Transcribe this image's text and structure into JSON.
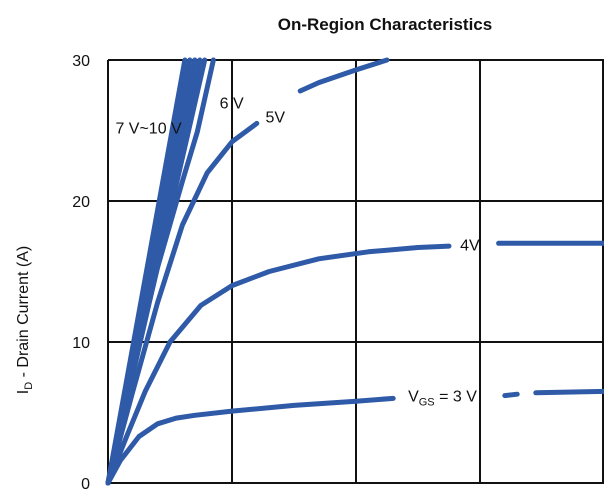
{
  "chart_data": {
    "type": "line",
    "title": "On-Region Characteristics",
    "ylabel_main": "I",
    "ylabel_sub": "D",
    "ylabel_rest": " - Drain Current (A)",
    "xlabel": "",
    "xlim": [
      0,
      4
    ],
    "ylim": [
      0,
      30
    ],
    "yticks": [
      "0",
      "10",
      "20",
      "30"
    ],
    "color": "#2f5aa8",
    "series": [
      {
        "label_main": "V",
        "label_sub": "GS",
        "label_rest": " = 3 V",
        "label_pos": [
          2.42,
          6.2
        ],
        "x": [
          0,
          0.1,
          0.25,
          0.4,
          0.55,
          0.7,
          1.0,
          1.5,
          2.0,
          2.3,
          3.2,
          3.3,
          3.45,
          4.0
        ],
        "y": [
          0,
          1.6,
          3.3,
          4.2,
          4.6,
          4.8,
          5.1,
          5.5,
          5.8,
          6.0,
          6.2,
          6.3,
          6.4,
          6.5
        ],
        "gaps": [
          [
            2.3,
            3.2
          ],
          [
            3.3,
            3.45
          ]
        ]
      },
      {
        "label_main": "4V",
        "label_sub": "",
        "label_rest": "",
        "label_pos": [
          2.84,
          16.9
        ],
        "x": [
          0,
          0.15,
          0.3,
          0.5,
          0.75,
          1.0,
          1.3,
          1.7,
          2.1,
          2.5,
          2.75,
          3.05,
          3.15,
          3.3,
          4.0
        ],
        "y": [
          0,
          3.3,
          6.5,
          10.0,
          12.6,
          14.0,
          15.0,
          15.9,
          16.4,
          16.7,
          16.8,
          16.95,
          17.0,
          17.0,
          17.0
        ],
        "gaps": [
          [
            2.75,
            3.15
          ]
        ]
      },
      {
        "label_main": "5V",
        "label_sub": "",
        "label_rest": "",
        "label_pos": [
          1.27,
          26.0
        ],
        "x": [
          0,
          0.2,
          0.4,
          0.6,
          0.8,
          1.0,
          1.2,
          1.35,
          1.55,
          1.7,
          2.0,
          2.25
        ],
        "y": [
          0,
          6.5,
          12.8,
          18.3,
          22.0,
          24.2,
          25.5,
          26.6,
          27.8,
          28.4,
          29.3,
          30.0
        ],
        "gaps": [
          [
            1.2,
            1.55
          ]
        ]
      },
      {
        "label_main": "6 V",
        "label_sub": "",
        "label_rest": "",
        "label_pos": [
          0.9,
          27.0
        ],
        "x": [
          0,
          0.2,
          0.4,
          0.6,
          0.72,
          0.85
        ],
        "y": [
          0,
          8.0,
          15.3,
          21.4,
          24.9,
          30.0
        ],
        "gaps": []
      },
      {
        "label_main": "7 V~10 V",
        "label_sub": "",
        "label_rest": "",
        "label_pos": [
          0.06,
          25.2
        ],
        "multi": true,
        "ends": [
          [
            0.62,
            30
          ],
          [
            0.66,
            30
          ],
          [
            0.7,
            30
          ],
          [
            0.74,
            30
          ],
          [
            0.78,
            30
          ]
        ],
        "gaps": []
      }
    ]
  }
}
